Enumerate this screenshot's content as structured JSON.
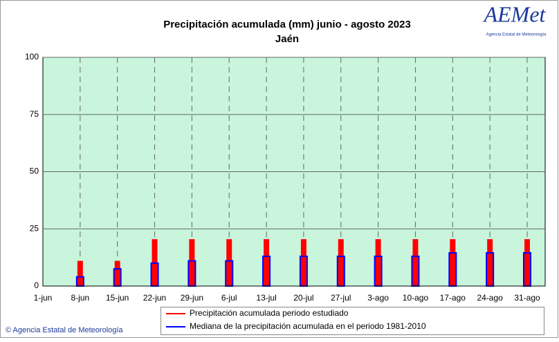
{
  "chart_data": {
    "type": "bar",
    "title": "Precipitación acumulada (mm) junio - agosto 2023",
    "subtitle": "Jaén",
    "logo": "AEMet",
    "logo_caption": "Agencia Estatal de Meteorología",
    "footer": "© Agencia Estatal de Meteorología",
    "categories": [
      "1-jun",
      "8-jun",
      "15-jun",
      "22-jun",
      "29-jun",
      "6-jul",
      "13-jul",
      "20-jul",
      "27-jul",
      "3-ago",
      "10-ago",
      "17-ago",
      "24-ago",
      "31-ago"
    ],
    "series": [
      {
        "name": "Precipitación acumulada periodo estudiado",
        "color": "#ff0000",
        "values": [
          0,
          11,
          11,
          20.5,
          20.5,
          20.5,
          20.5,
          20.5,
          20.5,
          20.5,
          20.5,
          20.5,
          20.5,
          20.5
        ]
      },
      {
        "name": "Mediana de la precipitación acumulada en el periodo 1981-2010",
        "color": "#0000ff",
        "values": [
          0,
          4,
          7.5,
          10,
          11,
          11,
          13,
          13,
          13,
          13,
          13,
          14.5,
          14.5,
          14.5
        ]
      }
    ],
    "ylim": [
      0,
      100
    ],
    "yticks": [
      0,
      25,
      50,
      75,
      100
    ],
    "grid": true,
    "background": "#c8f5dc"
  }
}
